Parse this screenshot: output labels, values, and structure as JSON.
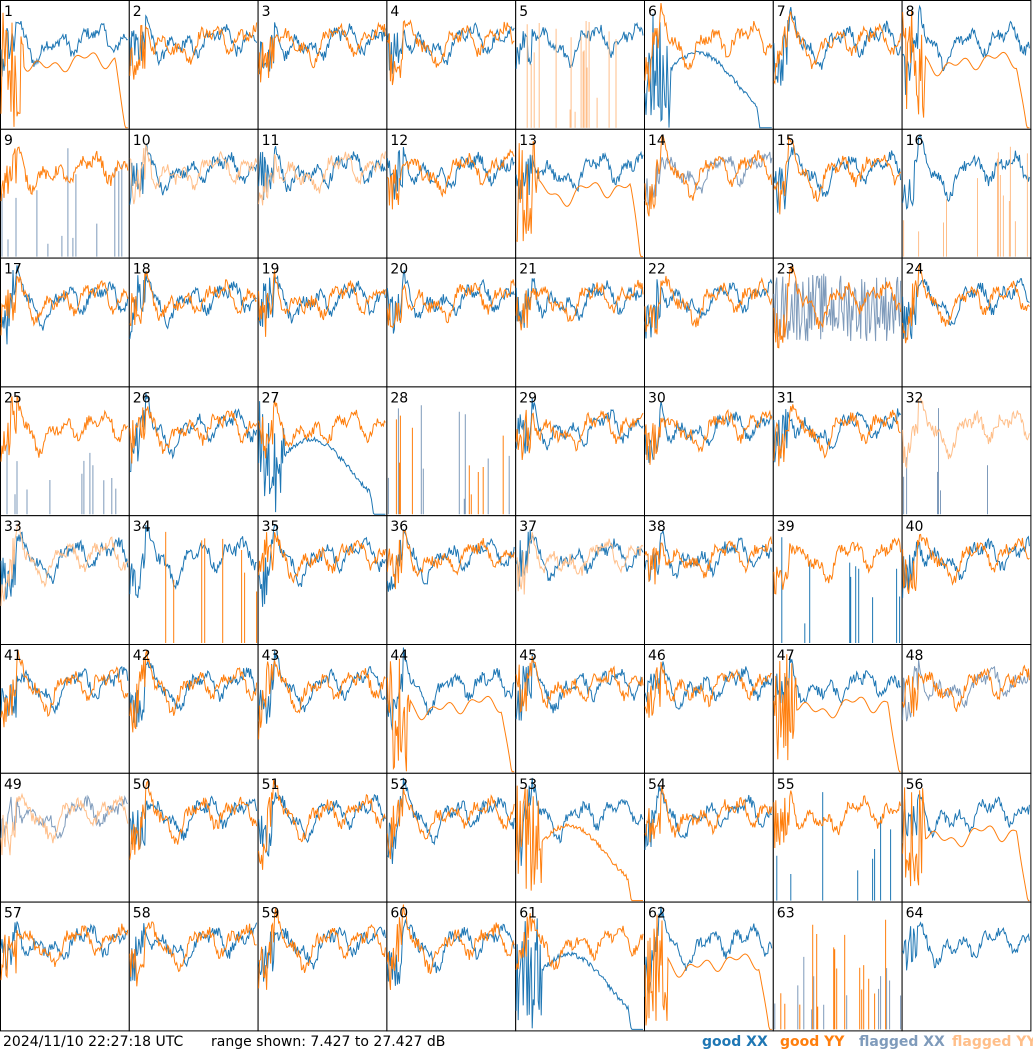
{
  "footer": {
    "timestamp": "2024/11/10 22:27:18 UTC",
    "range": "range shown: 7.427 to 27.427 dB"
  },
  "legend": [
    {
      "label": "good XX",
      "color": "#1f77b4"
    },
    {
      "label": "good YY",
      "color": "#ff7f0e"
    },
    {
      "label": "flagged XX",
      "color": "#7f9bbb"
    },
    {
      "label": "flagged YY",
      "color": "#ffbf8a"
    }
  ],
  "chart_data": {
    "type": "line",
    "layout": "small-multiples 8x8",
    "ylim_db": [
      7.427,
      27.427
    ],
    "series_names": [
      "good XX",
      "good YY",
      "flagged XX",
      "flagged YY"
    ],
    "panels": [
      {
        "label": "1",
        "xx": "good",
        "yy": "good",
        "xx_shape": "normal",
        "yy_shape": "rolloff"
      },
      {
        "label": "2",
        "xx": "good",
        "yy": "good",
        "xx_shape": "normal",
        "yy_shape": "normal"
      },
      {
        "label": "3",
        "xx": "good",
        "yy": "good",
        "xx_shape": "normal",
        "yy_shape": "normal"
      },
      {
        "label": "4",
        "xx": "good",
        "yy": "good",
        "xx_shape": "normal",
        "yy_shape": "normal"
      },
      {
        "label": "5",
        "xx": "good",
        "yy": "flagged",
        "xx_shape": "normal",
        "yy_shape": "spikes"
      },
      {
        "label": "6",
        "xx": "good",
        "yy": "good",
        "xx_shape": "hump",
        "yy_shape": "normal"
      },
      {
        "label": "7",
        "xx": "good",
        "yy": "good",
        "xx_shape": "normal",
        "yy_shape": "normal"
      },
      {
        "label": "8",
        "xx": "good",
        "yy": "good",
        "xx_shape": "normal",
        "yy_shape": "rolloff"
      },
      {
        "label": "9",
        "xx": "flagged",
        "yy": "good",
        "xx_shape": "spikes",
        "yy_shape": "normal"
      },
      {
        "label": "10",
        "xx": "good",
        "yy": "flagged",
        "xx_shape": "normal",
        "yy_shape": "normal"
      },
      {
        "label": "11",
        "xx": "good",
        "yy": "flagged",
        "xx_shape": "normal",
        "yy_shape": "normal"
      },
      {
        "label": "12",
        "xx": "good",
        "yy": "good",
        "xx_shape": "normal",
        "yy_shape": "normal"
      },
      {
        "label": "13",
        "xx": "good",
        "yy": "good",
        "xx_shape": "normal",
        "yy_shape": "rolloff"
      },
      {
        "label": "14",
        "xx": "flagged",
        "yy": "good",
        "xx_shape": "normal",
        "yy_shape": "normal"
      },
      {
        "label": "15",
        "xx": "good",
        "yy": "good",
        "xx_shape": "normal",
        "yy_shape": "normal"
      },
      {
        "label": "16",
        "xx": "good",
        "yy": "flagged",
        "xx_shape": "normal",
        "yy_shape": "spikes"
      },
      {
        "label": "17",
        "xx": "good",
        "yy": "good",
        "xx_shape": "normal",
        "yy_shape": "normal"
      },
      {
        "label": "18",
        "xx": "good",
        "yy": "good",
        "xx_shape": "normal",
        "yy_shape": "normal"
      },
      {
        "label": "19",
        "xx": "good",
        "yy": "good",
        "xx_shape": "normal",
        "yy_shape": "normal"
      },
      {
        "label": "20",
        "xx": "good",
        "yy": "good",
        "xx_shape": "normal",
        "yy_shape": "normal"
      },
      {
        "label": "21",
        "xx": "good",
        "yy": "good",
        "xx_shape": "normal",
        "yy_shape": "normal"
      },
      {
        "label": "22",
        "xx": "good",
        "yy": "good",
        "xx_shape": "normal",
        "yy_shape": "normal"
      },
      {
        "label": "23",
        "xx": "flagged",
        "yy": "good",
        "xx_shape": "noisy",
        "yy_shape": "normal"
      },
      {
        "label": "24",
        "xx": "good",
        "yy": "good",
        "xx_shape": "normal",
        "yy_shape": "normal"
      },
      {
        "label": "25",
        "xx": "flagged",
        "yy": "good",
        "xx_shape": "spikes",
        "yy_shape": "normal"
      },
      {
        "label": "26",
        "xx": "good",
        "yy": "good",
        "xx_shape": "normal",
        "yy_shape": "normal"
      },
      {
        "label": "27",
        "xx": "good",
        "yy": "good",
        "xx_shape": "hump",
        "yy_shape": "normal"
      },
      {
        "label": "28",
        "xx": "flagged",
        "yy": "good",
        "xx_shape": "spikes",
        "yy_shape": "spikes"
      },
      {
        "label": "29",
        "xx": "good",
        "yy": "good",
        "xx_shape": "normal",
        "yy_shape": "normal"
      },
      {
        "label": "30",
        "xx": "good",
        "yy": "good",
        "xx_shape": "normal",
        "yy_shape": "normal"
      },
      {
        "label": "31",
        "xx": "good",
        "yy": "good",
        "xx_shape": "normal",
        "yy_shape": "normal"
      },
      {
        "label": "32",
        "xx": "flagged",
        "yy": "flagged",
        "xx_shape": "spikes",
        "yy_shape": "normal"
      },
      {
        "label": "33",
        "xx": "good",
        "yy": "flagged",
        "xx_shape": "normal",
        "yy_shape": "normal"
      },
      {
        "label": "34",
        "xx": "good",
        "yy": "good",
        "xx_shape": "normal",
        "yy_shape": "spikes"
      },
      {
        "label": "35",
        "xx": "good",
        "yy": "good",
        "xx_shape": "normal",
        "yy_shape": "normal"
      },
      {
        "label": "36",
        "xx": "good",
        "yy": "good",
        "xx_shape": "normal",
        "yy_shape": "normal"
      },
      {
        "label": "37",
        "xx": "good",
        "yy": "flagged",
        "xx_shape": "normal",
        "yy_shape": "normal"
      },
      {
        "label": "38",
        "xx": "good",
        "yy": "good",
        "xx_shape": "normal",
        "yy_shape": "normal"
      },
      {
        "label": "39",
        "xx": "good",
        "yy": "good",
        "xx_shape": "spikes",
        "yy_shape": "normal"
      },
      {
        "label": "40",
        "xx": "good",
        "yy": "good",
        "xx_shape": "normal",
        "yy_shape": "normal"
      },
      {
        "label": "41",
        "xx": "good",
        "yy": "good",
        "xx_shape": "normal",
        "yy_shape": "normal"
      },
      {
        "label": "42",
        "xx": "good",
        "yy": "good",
        "xx_shape": "normal",
        "yy_shape": "normal"
      },
      {
        "label": "43",
        "xx": "good",
        "yy": "good",
        "xx_shape": "normal",
        "yy_shape": "normal"
      },
      {
        "label": "44",
        "xx": "good",
        "yy": "good",
        "xx_shape": "normal",
        "yy_shape": "rolloff"
      },
      {
        "label": "45",
        "xx": "good",
        "yy": "good",
        "xx_shape": "normal",
        "yy_shape": "normal"
      },
      {
        "label": "46",
        "xx": "good",
        "yy": "good",
        "xx_shape": "normal",
        "yy_shape": "normal"
      },
      {
        "label": "47",
        "xx": "good",
        "yy": "good",
        "xx_shape": "normal",
        "yy_shape": "rolloff"
      },
      {
        "label": "48",
        "xx": "flagged",
        "yy": "good",
        "xx_shape": "normal",
        "yy_shape": "normal"
      },
      {
        "label": "49",
        "xx": "flagged",
        "yy": "flagged",
        "xx_shape": "normal",
        "yy_shape": "normal"
      },
      {
        "label": "50",
        "xx": "good",
        "yy": "good",
        "xx_shape": "normal",
        "yy_shape": "normal"
      },
      {
        "label": "51",
        "xx": "good",
        "yy": "good",
        "xx_shape": "normal",
        "yy_shape": "normal"
      },
      {
        "label": "52",
        "xx": "good",
        "yy": "good",
        "xx_shape": "normal",
        "yy_shape": "normal"
      },
      {
        "label": "53",
        "xx": "good",
        "yy": "good",
        "xx_shape": "normal",
        "yy_shape": "hump"
      },
      {
        "label": "54",
        "xx": "good",
        "yy": "good",
        "xx_shape": "normal",
        "yy_shape": "normal"
      },
      {
        "label": "55",
        "xx": "good",
        "yy": "good",
        "xx_shape": "spikes",
        "yy_shape": "normal"
      },
      {
        "label": "56",
        "xx": "good",
        "yy": "good",
        "xx_shape": "normal",
        "yy_shape": "rolloff"
      },
      {
        "label": "57",
        "xx": "good",
        "yy": "good",
        "xx_shape": "normal",
        "yy_shape": "normal"
      },
      {
        "label": "58",
        "xx": "good",
        "yy": "good",
        "xx_shape": "normal",
        "yy_shape": "normal"
      },
      {
        "label": "59",
        "xx": "good",
        "yy": "good",
        "xx_shape": "normal",
        "yy_shape": "normal"
      },
      {
        "label": "60",
        "xx": "good",
        "yy": "good",
        "xx_shape": "normal",
        "yy_shape": "normal"
      },
      {
        "label": "61",
        "xx": "good",
        "yy": "good",
        "xx_shape": "hump",
        "yy_shape": "normal"
      },
      {
        "label": "62",
        "xx": "good",
        "yy": "good",
        "xx_shape": "normal",
        "yy_shape": "rolloff"
      },
      {
        "label": "63",
        "xx": "flagged",
        "yy": "good",
        "xx_shape": "spikes",
        "yy_shape": "spikes"
      },
      {
        "label": "64",
        "xx": "good",
        "yy": "none",
        "xx_shape": "normal",
        "yy_shape": "none"
      }
    ]
  }
}
